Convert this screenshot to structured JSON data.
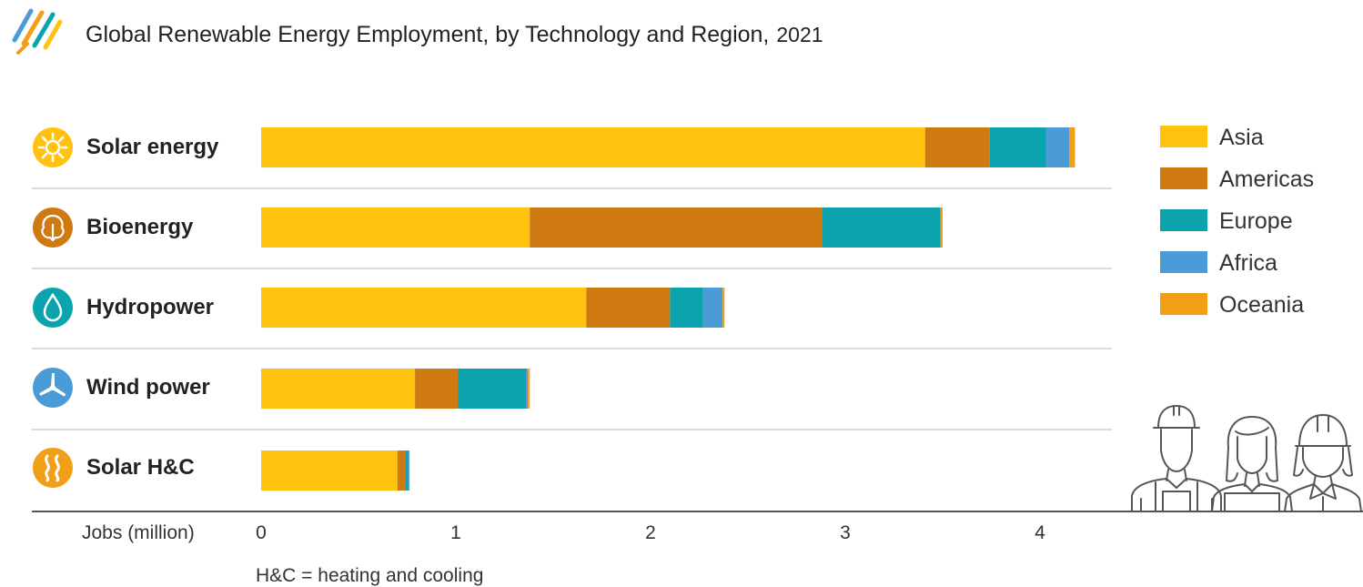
{
  "header": {
    "title": "Global Renewable Energy Employment, by Technology and Region,",
    "year": "2021"
  },
  "icons": {
    "logo": "striped-diagonal-logo-icon",
    "categories": [
      "sun-icon",
      "leaf-icon",
      "water-drop-icon",
      "wind-turbine-icon",
      "heat-waves-icon"
    ],
    "workers": "workers-illustration"
  },
  "colors": {
    "Asia": "#FFC20E",
    "Americas": "#CE7A10",
    "Europe": "#0BA3AE",
    "Africa": "#4A9BD6",
    "Oceania": "#F29F18",
    "icon_solar": "#FFC20E",
    "icon_bio": "#CE7A10",
    "icon_hydro": "#0BA3AE",
    "icon_wind": "#4A9BD6",
    "icon_solarhc": "#F29F18"
  },
  "chart_data": {
    "type": "bar",
    "orientation": "horizontal",
    "stacked": true,
    "title": "Global Renewable Energy Employment, by Technology and Region, 2021",
    "xlabel": "Jobs (million)",
    "xlim": [
      0,
      4.3
    ],
    "xticks": [
      0,
      1,
      2,
      3,
      4
    ],
    "categories": [
      "Solar energy",
      "Bioenergy",
      "Hydropower",
      "Wind power",
      "Solar H&C"
    ],
    "series": [
      {
        "name": "Asia",
        "values": [
          3.41,
          1.38,
          1.67,
          0.79,
          0.7
        ]
      },
      {
        "name": "Americas",
        "values": [
          0.33,
          1.5,
          0.43,
          0.22,
          0.04
        ]
      },
      {
        "name": "Europe",
        "values": [
          0.29,
          0.61,
          0.17,
          0.35,
          0.015
        ]
      },
      {
        "name": "Africa",
        "values": [
          0.12,
          0.0,
          0.1,
          0.01,
          0.005
        ]
      },
      {
        "name": "Oceania",
        "values": [
          0.03,
          0.01,
          0.01,
          0.01,
          0.0
        ]
      }
    ],
    "legend_position": "right",
    "note": "H&C = heating and cooling"
  }
}
